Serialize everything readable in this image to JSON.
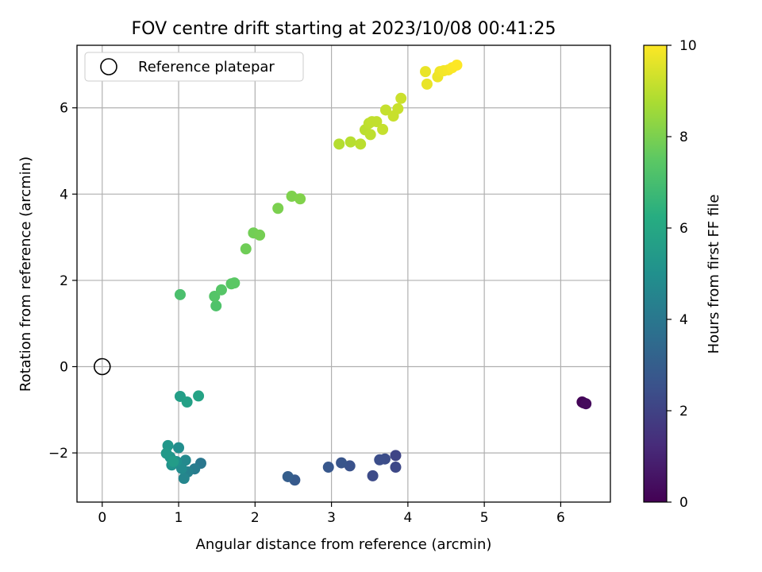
{
  "chart_data": {
    "type": "scatter",
    "title": "FOV centre drift starting at 2023/10/08 00:41:25",
    "xlabel": "Angular distance from reference (arcmin)",
    "ylabel": "Rotation from reference (arcmin)",
    "xlim": [
      -0.33,
      6.65
    ],
    "ylim": [
      -3.14,
      7.45
    ],
    "xticks": [
      0,
      1,
      2,
      3,
      4,
      5,
      6
    ],
    "yticks": [
      -2,
      0,
      2,
      4,
      6
    ],
    "grid": true,
    "legend": {
      "position": "top-left",
      "entries": [
        "Reference platepar"
      ]
    },
    "reference_point": {
      "x": 0,
      "y": 0,
      "label": "Reference platepar"
    },
    "colorbar": {
      "label": "Hours from first FF file",
      "range": [
        0,
        10
      ],
      "ticks": [
        0,
        2,
        4,
        6,
        8,
        10
      ],
      "colormap": "viridis"
    },
    "points": [
      {
        "x": 6.28,
        "y": -0.82,
        "c": 0.05
      },
      {
        "x": 6.3,
        "y": -0.84,
        "c": 0.15
      },
      {
        "x": 6.33,
        "y": -0.86,
        "c": 0.25
      },
      {
        "x": 3.84,
        "y": -2.06,
        "c": 2.1
      },
      {
        "x": 3.84,
        "y": -2.33,
        "c": 2.2
      },
      {
        "x": 3.54,
        "y": -2.53,
        "c": 2.3
      },
      {
        "x": 3.7,
        "y": -2.14,
        "c": 2.35
      },
      {
        "x": 3.63,
        "y": -2.16,
        "c": 2.4
      },
      {
        "x": 3.24,
        "y": -2.3,
        "c": 2.55
      },
      {
        "x": 3.13,
        "y": -2.23,
        "c": 2.65
      },
      {
        "x": 2.96,
        "y": -2.33,
        "c": 2.75
      },
      {
        "x": 2.52,
        "y": -2.63,
        "c": 2.85
      },
      {
        "x": 2.43,
        "y": -2.55,
        "c": 3.0
      },
      {
        "x": 1.29,
        "y": -2.24,
        "c": 4.0
      },
      {
        "x": 1.21,
        "y": -2.37,
        "c": 4.2
      },
      {
        "x": 1.12,
        "y": -2.44,
        "c": 4.4
      },
      {
        "x": 1.07,
        "y": -2.59,
        "c": 4.6
      },
      {
        "x": 1.09,
        "y": -2.17,
        "c": 4.7
      },
      {
        "x": 1.04,
        "y": -2.36,
        "c": 4.8
      },
      {
        "x": 1.0,
        "y": -1.88,
        "c": 4.9
      },
      {
        "x": 0.97,
        "y": -2.2,
        "c": 5.0
      },
      {
        "x": 0.91,
        "y": -2.28,
        "c": 5.1
      },
      {
        "x": 0.89,
        "y": -2.1,
        "c": 5.2
      },
      {
        "x": 0.86,
        "y": -1.83,
        "c": 5.3
      },
      {
        "x": 0.84,
        "y": -2.01,
        "c": 5.4
      },
      {
        "x": 0.93,
        "y": -2.2,
        "c": 5.5
      },
      {
        "x": 1.02,
        "y": -0.69,
        "c": 5.6
      },
      {
        "x": 1.11,
        "y": -0.82,
        "c": 5.7
      },
      {
        "x": 1.26,
        "y": -0.68,
        "c": 5.8
      },
      {
        "x": 1.02,
        "y": 1.67,
        "c": 7.1
      },
      {
        "x": 1.49,
        "y": 1.41,
        "c": 7.2
      },
      {
        "x": 1.47,
        "y": 1.63,
        "c": 7.3
      },
      {
        "x": 1.56,
        "y": 1.78,
        "c": 7.35
      },
      {
        "x": 1.69,
        "y": 1.92,
        "c": 7.4
      },
      {
        "x": 1.73,
        "y": 1.94,
        "c": 7.45
      },
      {
        "x": 1.88,
        "y": 2.73,
        "c": 7.8
      },
      {
        "x": 1.98,
        "y": 3.1,
        "c": 7.85
      },
      {
        "x": 2.06,
        "y": 3.05,
        "c": 7.9
      },
      {
        "x": 2.3,
        "y": 3.67,
        "c": 8.0
      },
      {
        "x": 2.48,
        "y": 3.95,
        "c": 8.05
      },
      {
        "x": 2.59,
        "y": 3.89,
        "c": 8.1
      },
      {
        "x": 3.1,
        "y": 5.16,
        "c": 8.9
      },
      {
        "x": 3.25,
        "y": 5.21,
        "c": 8.95
      },
      {
        "x": 3.38,
        "y": 5.16,
        "c": 9.0
      },
      {
        "x": 3.44,
        "y": 5.49,
        "c": 9.0
      },
      {
        "x": 3.49,
        "y": 5.64,
        "c": 9.05
      },
      {
        "x": 3.51,
        "y": 5.38,
        "c": 9.05
      },
      {
        "x": 3.53,
        "y": 5.68,
        "c": 9.1
      },
      {
        "x": 3.59,
        "y": 5.68,
        "c": 9.1
      },
      {
        "x": 3.67,
        "y": 5.5,
        "c": 9.15
      },
      {
        "x": 3.71,
        "y": 5.95,
        "c": 9.15
      },
      {
        "x": 3.81,
        "y": 5.81,
        "c": 9.2
      },
      {
        "x": 3.87,
        "y": 5.98,
        "c": 9.2
      },
      {
        "x": 3.91,
        "y": 6.22,
        "c": 9.25
      },
      {
        "x": 4.23,
        "y": 6.84,
        "c": 9.7
      },
      {
        "x": 4.25,
        "y": 6.55,
        "c": 9.7
      },
      {
        "x": 4.39,
        "y": 6.72,
        "c": 9.75
      },
      {
        "x": 4.42,
        "y": 6.84,
        "c": 9.8
      },
      {
        "x": 4.47,
        "y": 6.86,
        "c": 9.85
      },
      {
        "x": 4.53,
        "y": 6.88,
        "c": 9.9
      },
      {
        "x": 4.58,
        "y": 6.93,
        "c": 9.95
      },
      {
        "x": 4.64,
        "y": 6.99,
        "c": 10.0
      }
    ]
  }
}
